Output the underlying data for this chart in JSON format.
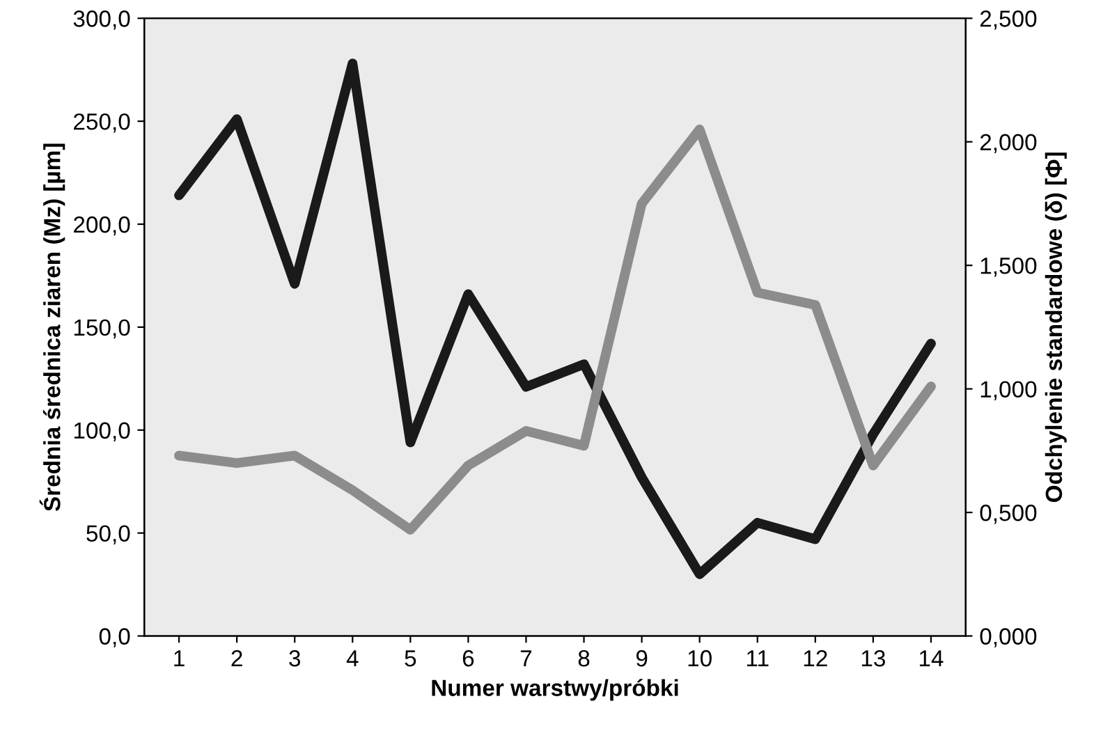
{
  "chart_data": {
    "type": "line",
    "xlabel": "Numer warstwy/próbki",
    "ylabel": "Średnia średnica ziaren (Mz) [µm]",
    "y2label": "Odchylenie standardowe (δ) [Φ]",
    "categories": [
      "1",
      "2",
      "3",
      "4",
      "5",
      "6",
      "7",
      "8",
      "9",
      "10",
      "11",
      "12",
      "13",
      "14"
    ],
    "series": [
      {
        "color": "#1a1a1a",
        "values": [
          214,
          251,
          171,
          278,
          94,
          166,
          121,
          132,
          77,
          30,
          55,
          47,
          98,
          142
        ]
      },
      {
        "color": "#8c8c8c",
        "axis": "y2",
        "values": [
          0.73,
          0.7,
          0.73,
          0.59,
          0.43,
          0.69,
          0.83,
          0.77,
          1.75,
          2.05,
          1.39,
          1.34,
          0.69,
          1.01
        ]
      }
    ],
    "ylim": [
      0,
      300
    ],
    "yticks": [
      {
        "value": 0,
        "label": "0,0"
      },
      {
        "value": 50,
        "label": "50,0"
      },
      {
        "value": 100,
        "label": "100,0"
      },
      {
        "value": 150,
        "label": "150,0"
      },
      {
        "value": 200,
        "label": "200,0"
      },
      {
        "value": 250,
        "label": "250,0"
      },
      {
        "value": 300,
        "label": "300,0"
      }
    ],
    "y2lim": [
      0,
      2.5
    ],
    "y2ticks": [
      {
        "value": 0,
        "label": "0,000"
      },
      {
        "value": 0.5,
        "label": "0,500"
      },
      {
        "value": 1.0,
        "label": "1,000"
      },
      {
        "value": 1.5,
        "label": "1,500"
      },
      {
        "value": 2.0,
        "label": "2,000"
      },
      {
        "value": 2.5,
        "label": "2,500"
      }
    ],
    "grid": false,
    "legend": false,
    "marker": "none",
    "line_style": "solid"
  }
}
